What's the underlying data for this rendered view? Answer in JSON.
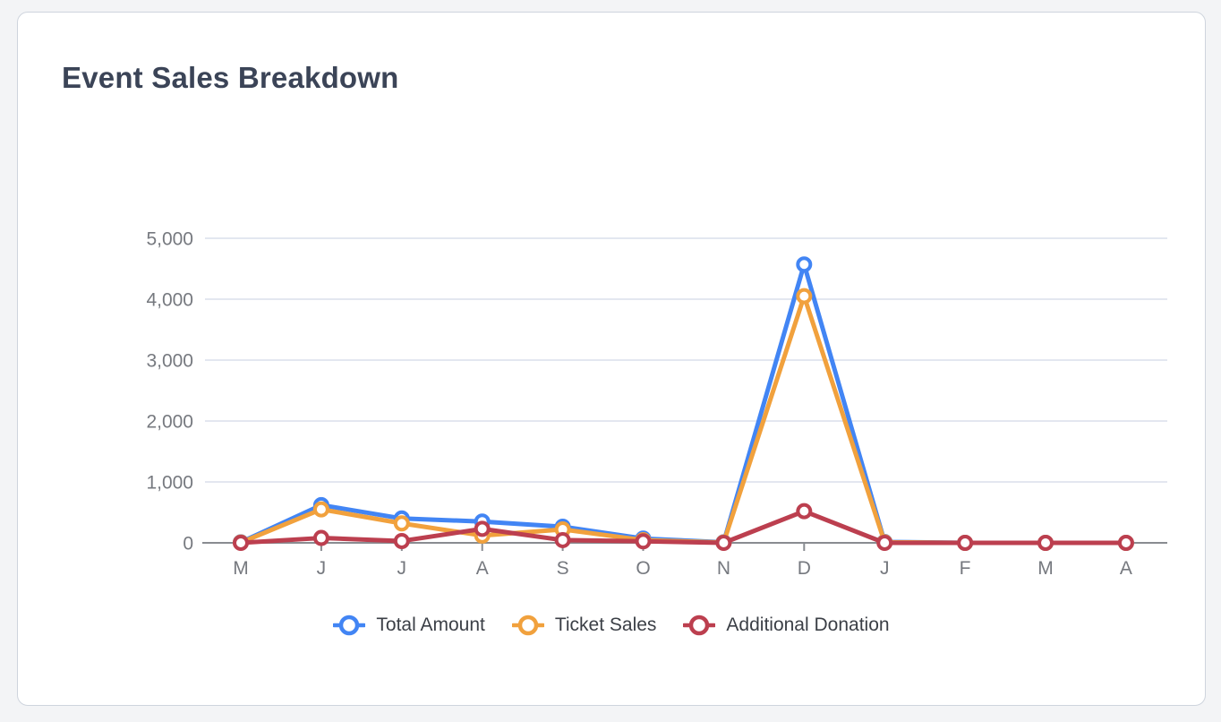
{
  "page": {
    "background_color": "#f3f4f6"
  },
  "card": {
    "title": "Event Sales Breakdown",
    "title_color": "#3b4457",
    "background_color": "#ffffff",
    "border_color": "#ced4dd"
  },
  "chart_data": {
    "type": "line",
    "title": "Event Sales Breakdown",
    "categories": [
      "M",
      "J",
      "J",
      "A",
      "S",
      "O",
      "N",
      "D",
      "J",
      "F",
      "M",
      "A"
    ],
    "series": [
      {
        "name": "Total Amount",
        "color": "#4285F4",
        "values": [
          10,
          620,
          400,
          350,
          265,
          70,
          10,
          4570,
          15,
          0,
          0,
          0
        ]
      },
      {
        "name": "Ticket Sales",
        "color": "#F1A13D",
        "values": [
          5,
          550,
          320,
          120,
          220,
          45,
          5,
          4050,
          10,
          0,
          0,
          0
        ]
      },
      {
        "name": "Additional Donation",
        "color": "#BC3F4F",
        "values": [
          0,
          80,
          30,
          230,
          45,
          25,
          0,
          520,
          0,
          0,
          0,
          0
        ]
      }
    ],
    "ylim": [
      0,
      5000
    ],
    "yticks": [
      0,
      1000,
      2000,
      3000,
      4000,
      5000
    ],
    "ytick_labels": [
      "0",
      "1,000",
      "2,000",
      "3,000",
      "4,000",
      "5,000"
    ],
    "grid": "horizontal-only",
    "legend_position": "bottom",
    "marker_style": "hollow-circle",
    "axis_color": "#898c91",
    "grid_color": "#e3e7f0",
    "label_color": "#76797f",
    "legend_text_color": "#3b3f46"
  }
}
